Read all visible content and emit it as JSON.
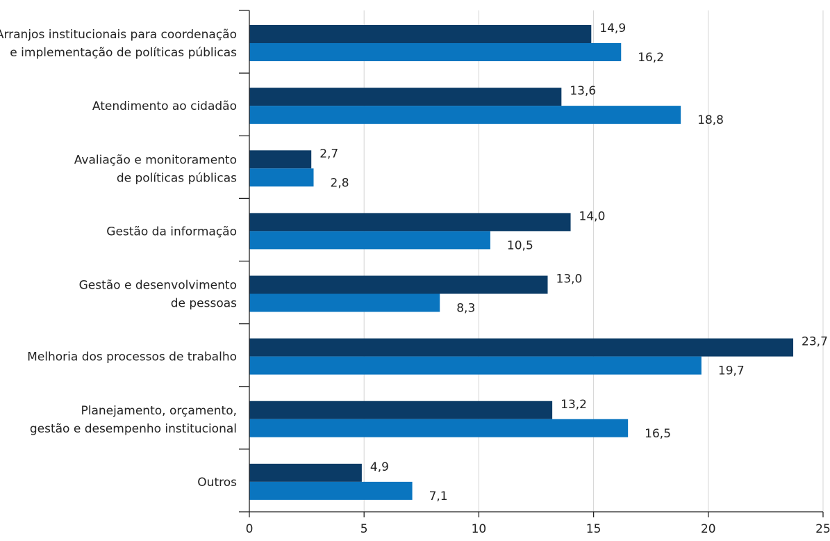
{
  "chart_data": {
    "type": "bar",
    "orientation": "horizontal",
    "categories": [
      [
        "Arranjos institucionais para coordenação",
        "e implementação de políticas públicas"
      ],
      [
        "Atendimento ao cidadão"
      ],
      [
        "Avaliação e monitoramento",
        "de políticas públicas"
      ],
      [
        "Gestão da informação"
      ],
      [
        "Gestão e desenvolvimento",
        "de pessoas"
      ],
      [
        "Melhoria dos processos de trabalho"
      ],
      [
        "Planejamento, orçamento,",
        "gestão e desempenho institucional"
      ],
      [
        "Outros"
      ]
    ],
    "series": [
      {
        "values": [
          14.9,
          13.6,
          2.7,
          14.0,
          13.0,
          23.7,
          13.2,
          4.9
        ],
        "labels": [
          "14,9",
          "13,6",
          "2,7",
          "14,0",
          "13,0",
          "23,7",
          "13,2",
          "4,9"
        ],
        "color": "#0b3b66"
      },
      {
        "values": [
          16.2,
          18.8,
          2.8,
          10.5,
          8.3,
          19.7,
          16.5,
          7.1
        ],
        "labels": [
          "16,2",
          "18,8",
          "2,8",
          "10,5",
          "8,3",
          "19,7",
          "16,5",
          "7,1"
        ],
        "color": "#0a75bf"
      }
    ],
    "xlim": [
      0,
      25
    ],
    "xticks": [
      0,
      5,
      10,
      15,
      20,
      25
    ],
    "xtick_labels": [
      "0",
      "5",
      "10",
      "15",
      "20",
      "25"
    ],
    "grid": "vertical",
    "legend": false
  }
}
